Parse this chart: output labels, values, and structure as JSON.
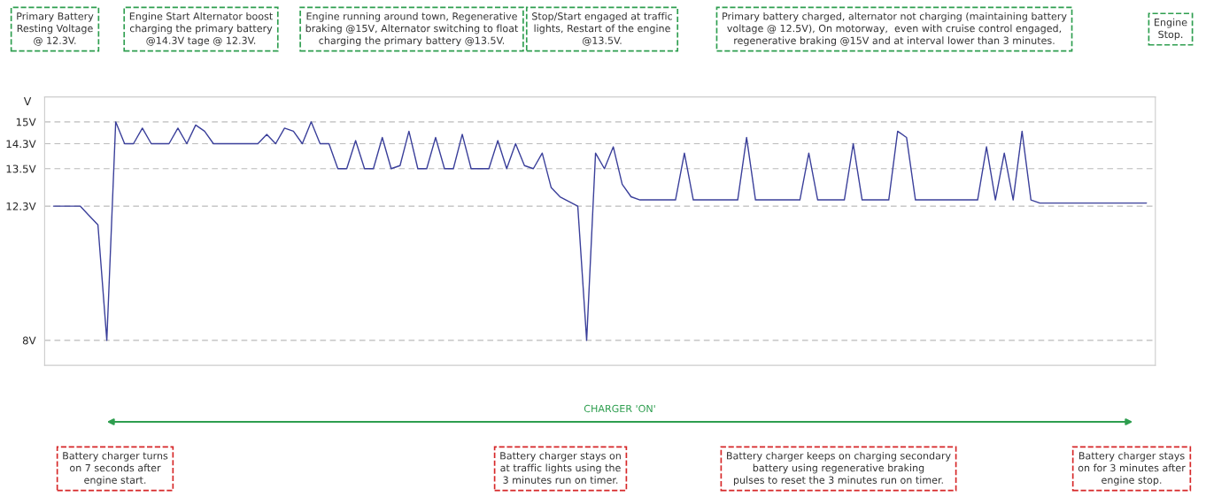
{
  "chart_data": {
    "type": "line",
    "ylabel": "V",
    "categories": [
      null,
      null,
      null,
      null,
      null,
      null,
      null,
      null,
      null,
      null,
      null,
      null,
      null,
      null,
      null,
      null,
      null,
      null,
      null,
      null,
      null,
      null,
      null,
      null,
      null,
      null,
      null,
      null,
      null,
      null,
      null,
      null,
      null,
      null,
      null,
      null,
      null,
      null,
      null,
      null,
      null,
      null,
      null,
      null,
      null,
      null,
      null,
      null,
      null,
      null,
      null,
      null,
      null,
      null,
      null,
      null,
      null,
      null,
      null,
      null,
      null,
      null,
      null,
      null,
      null,
      null,
      null,
      null,
      null,
      null,
      null,
      null,
      null,
      null,
      null,
      null,
      null,
      null,
      null,
      null,
      null,
      null,
      null,
      null,
      null,
      null,
      null,
      null,
      null,
      null,
      null,
      null,
      null,
      null,
      null,
      null,
      null,
      null,
      null,
      null,
      null,
      null,
      null,
      null,
      null,
      null,
      null,
      null,
      null,
      null,
      null,
      null,
      null,
      null,
      null,
      null,
      null,
      null,
      null,
      null,
      null,
      null,
      null,
      null
    ],
    "series": [
      {
        "color": "#3a3f9a",
        "values": [
          12.3,
          12.3,
          12.3,
          12.3,
          12.0,
          11.7,
          8.0,
          15.0,
          14.3,
          14.3,
          14.8,
          14.3,
          14.3,
          14.3,
          14.8,
          14.3,
          14.9,
          14.7,
          14.3,
          14.3,
          14.3,
          14.3,
          14.3,
          14.3,
          14.6,
          14.3,
          14.8,
          14.7,
          14.3,
          15.0,
          14.3,
          14.3,
          13.5,
          13.5,
          14.4,
          13.5,
          13.5,
          14.5,
          13.5,
          13.6,
          14.7,
          13.5,
          13.5,
          14.5,
          13.5,
          13.5,
          14.6,
          13.5,
          13.5,
          13.5,
          14.4,
          13.5,
          14.3,
          13.6,
          13.5,
          14.0,
          12.9,
          12.6,
          12.45,
          12.3,
          8.0,
          14.0,
          13.5,
          14.2,
          13.0,
          12.6,
          12.5,
          12.5,
          12.5,
          12.5,
          12.5,
          14.0,
          12.5,
          12.5,
          12.5,
          12.5,
          12.5,
          12.5,
          14.5,
          12.5,
          12.5,
          12.5,
          12.5,
          12.5,
          12.5,
          14.0,
          12.5,
          12.5,
          12.5,
          12.5,
          14.3,
          12.5,
          12.5,
          12.5,
          12.5,
          14.7,
          14.5,
          12.5,
          12.5,
          12.5,
          12.5,
          12.5,
          12.5,
          12.5,
          12.5,
          14.2,
          12.5,
          14.0,
          12.5,
          14.7,
          12.5,
          12.4,
          12.4,
          12.4,
          12.4,
          12.4,
          12.4,
          12.4,
          12.4,
          12.4,
          12.4,
          12.4,
          12.4,
          12.4
        ]
      }
    ],
    "ylim": [
      7.2,
      15.8
    ],
    "yticks": [
      {
        "value": 8,
        "label": "8V"
      },
      {
        "value": 12.3,
        "label": "12.3V"
      },
      {
        "value": 13.5,
        "label": "13.5V"
      },
      {
        "value": 14.3,
        "label": "14.3V"
      },
      {
        "value": 15,
        "label": "15V"
      }
    ],
    "grid": "y",
    "marker": "none",
    "line_style": "solid",
    "legend": false,
    "annotations": [
      "Primary Battery\nResting Voltage\n@ 12.3V.",
      "Engine Start Alternator boost\ncharging the primary battery\n@14.3V tage @ 12.3V.",
      "Engine running around town, Regenerative\nbraking @15V, Alternator switching to float\ncharging the primary battery @13.5V.",
      "Stop/Start engaged at traffic\nlights, Restart of the engine\n@13.5V.",
      "Primary battery charged, alternator not charging (maintaining battery\nvoltage @ 12.5V), On motorway,  even with cruise control engaged,\nregenerative braking @15V and at interval lower than 3 minutes.",
      "Engine\nStop.",
      "Battery charger turns\non 7 seconds after\nengine start.",
      "Battery charger stays on\nat traffic lights using the\n3 minutes run on timer.",
      "Battery charger keeps on charging secondary\nbattery using regenerative braking\npulses to reset the 3 minutes run on timer.",
      "Battery charger stays\non for 3 minutes after\nengine stop.",
      "CHARGER 'ON'"
    ]
  }
}
